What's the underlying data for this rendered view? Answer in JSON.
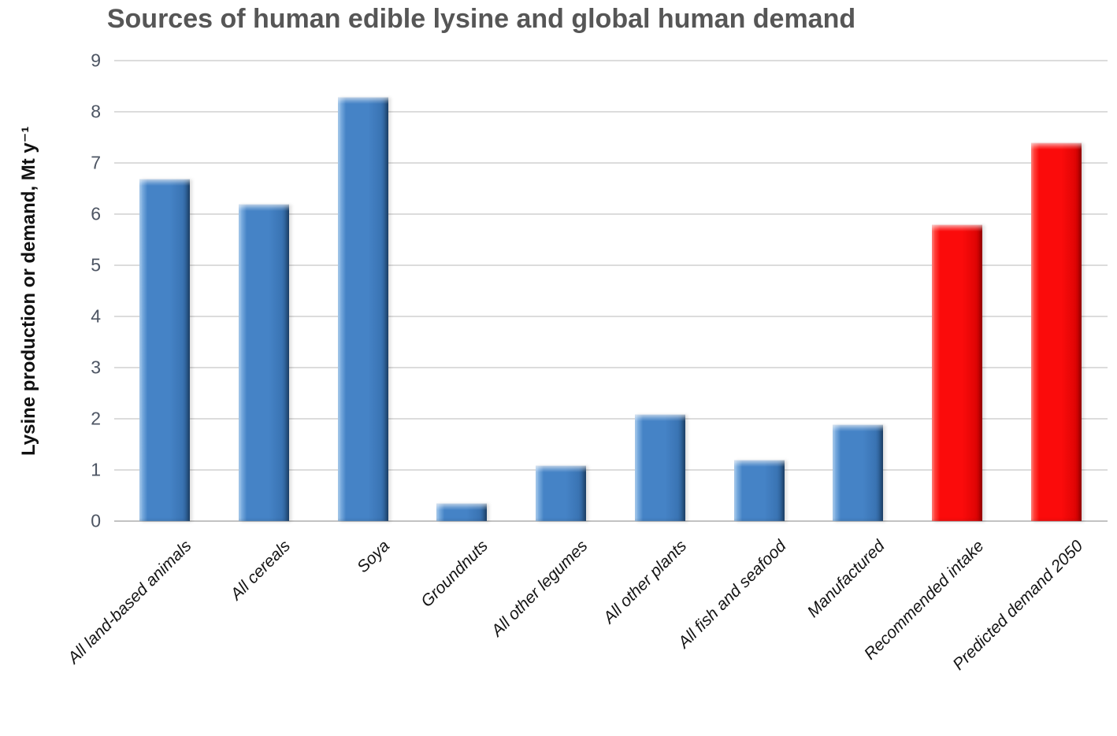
{
  "title": "Sources of human edible lysine and global human demand",
  "chart_data": {
    "type": "bar",
    "title": "Sources of human edible lysine and global human demand",
    "categories": [
      "All land-based animals",
      "All cereals",
      "Soya",
      "Groundnuts",
      "All other legumes",
      "All other plants",
      "All fish and seafood",
      "Manufactured",
      "Recommended intake",
      "Predicted demand 2050"
    ],
    "values": [
      6.7,
      6.2,
      8.3,
      0.35,
      1.1,
      2.1,
      1.2,
      1.9,
      5.8,
      7.4
    ],
    "bar_color_keys": [
      "blue",
      "blue",
      "blue",
      "blue",
      "blue",
      "blue",
      "blue",
      "blue",
      "red",
      "red"
    ],
    "palette": {
      "blue": {
        "main": "#4583C6",
        "light": "#82B2E2",
        "mid_dark": "#3A74B4",
        "dark": "#275689"
      },
      "red": {
        "main": "#FB0B0B",
        "light": "#FF4A42",
        "mid_dark": "#E30505",
        "dark": "#C40000"
      }
    },
    "xlabel": "",
    "ylabel": "Lysine production or demand, Mt y⁻¹",
    "ylim": [
      0,
      9
    ],
    "yticks": [
      0,
      1,
      2,
      3,
      4,
      5,
      6,
      7,
      8,
      9
    ],
    "grid": "horizontal",
    "legend": "none"
  }
}
